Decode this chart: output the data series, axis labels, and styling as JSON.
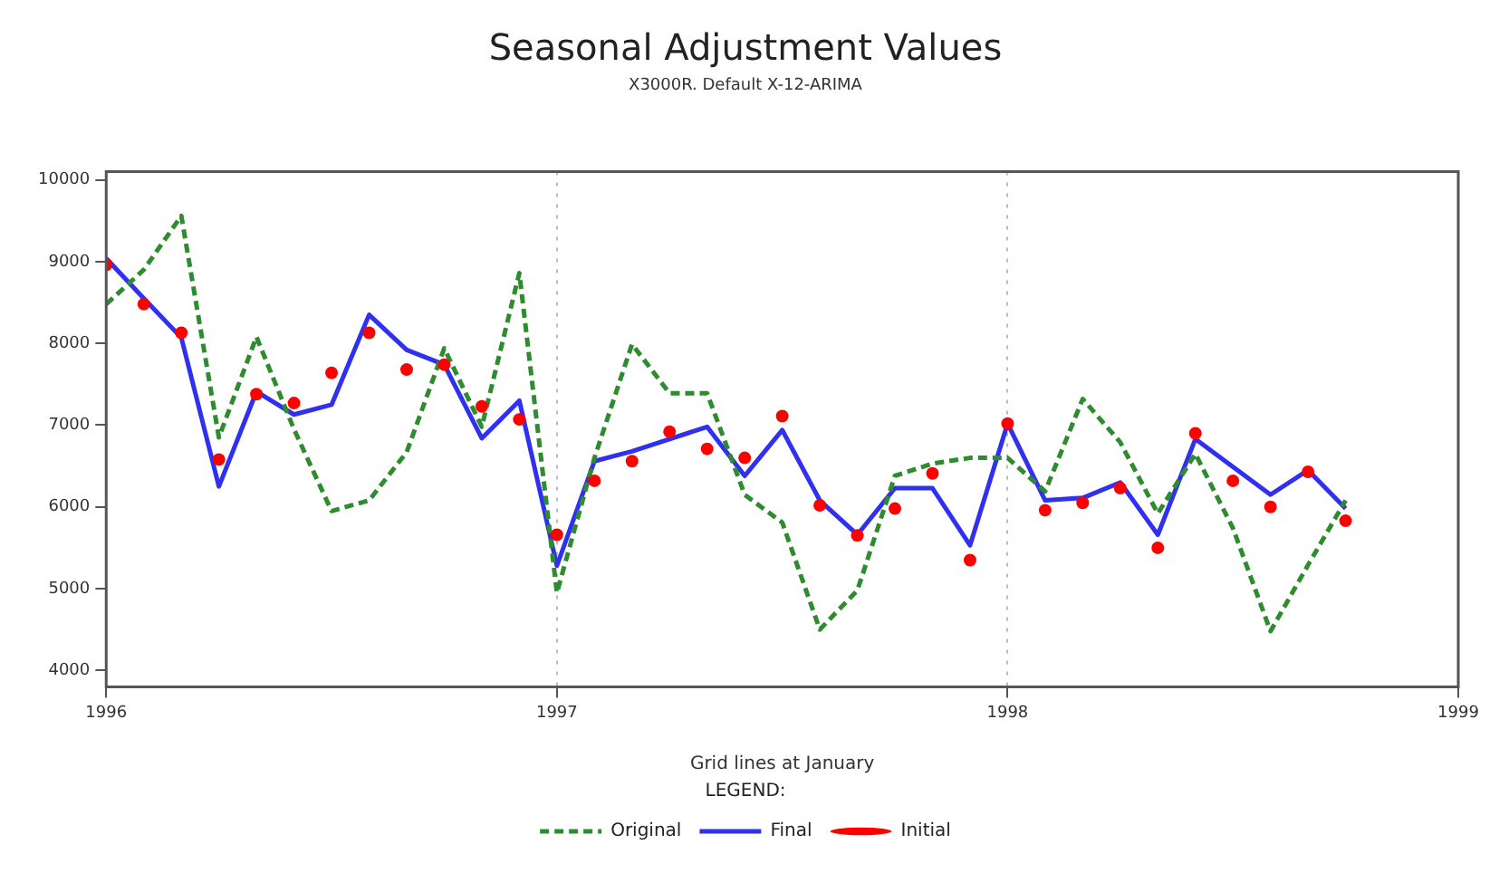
{
  "chart_data": {
    "type": "line",
    "title": "Seasonal Adjustment Values",
    "subtitle": "X3000R. Default X-12-ARIMA",
    "xlabel": "Grid lines at January",
    "legend_title": "LEGEND:",
    "x": [
      "1996-01",
      "1996-02",
      "1996-03",
      "1996-04",
      "1996-05",
      "1996-06",
      "1996-07",
      "1996-08",
      "1996-09",
      "1996-10",
      "1996-11",
      "1996-12",
      "1997-01",
      "1997-02",
      "1997-03",
      "1997-04",
      "1997-05",
      "1997-06",
      "1997-07",
      "1997-08",
      "1997-09",
      "1997-10",
      "1997-11",
      "1997-12",
      "1998-01",
      "1998-02",
      "1998-03",
      "1998-04",
      "1998-05",
      "1998-06",
      "1998-07",
      "1998-08",
      "1998-09",
      "1998-10"
    ],
    "series": [
      {
        "name": "Original",
        "color": "#2e8b2e",
        "line_style": "dashed",
        "marker": "none",
        "values": [
          8480,
          8900,
          9560,
          6850,
          8080,
          6950,
          5950,
          6080,
          6670,
          7940,
          6980,
          8860,
          4950,
          6600,
          7990,
          7390,
          7390,
          6150,
          5810,
          4500,
          4980,
          6380,
          6530,
          6600,
          6600,
          6190,
          7320,
          6790,
          5920,
          6650,
          5740,
          4480,
          5290,
          6080
        ]
      },
      {
        "name": "Final",
        "color": "#3030f0",
        "line_style": "solid",
        "marker": "none",
        "values": [
          9040,
          8550,
          8070,
          6250,
          7410,
          7130,
          7250,
          8350,
          7920,
          7740,
          6840,
          7300,
          5280,
          6560,
          6680,
          6830,
          6980,
          6380,
          6940,
          6080,
          5660,
          6230,
          6230,
          5530,
          7020,
          6080,
          6110,
          6300,
          5660,
          6830,
          6490,
          6150,
          6450,
          5980
        ]
      },
      {
        "name": "Initial",
        "type": "scatter",
        "color": "#ff0000",
        "marker": "circle",
        "values": [
          8960,
          8480,
          8130,
          6580,
          7380,
          7270,
          7640,
          8130,
          7680,
          7740,
          7230,
          7070,
          5660,
          6320,
          6560,
          6920,
          6710,
          6600,
          7110,
          6020,
          5650,
          5980,
          6410,
          5350,
          7020,
          5960,
          6050,
          6230,
          5500,
          6900,
          6320,
          6000,
          6430,
          5830
        ]
      }
    ],
    "xlim": [
      "1996",
      "1999"
    ],
    "xticks": [
      "1996",
      "1997",
      "1998",
      "1999"
    ],
    "ylim": [
      3800,
      10100
    ],
    "yticks": [
      4000,
      5000,
      6000,
      7000,
      8000,
      9000,
      10000
    ],
    "grid": "x",
    "legend": "bottom"
  }
}
